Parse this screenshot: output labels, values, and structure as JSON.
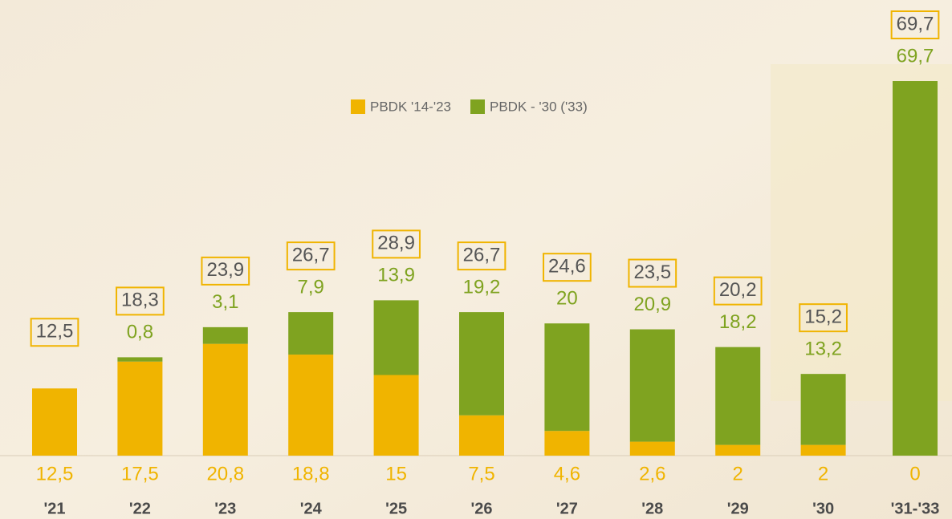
{
  "chart_data": {
    "type": "stacked_bar",
    "categories": [
      "'21",
      "'22",
      "'23",
      "'24",
      "'25",
      "'26",
      "'27",
      "'28",
      "'29",
      "'30",
      "'31-'33"
    ],
    "series": [
      {
        "name": "PBDK '14-'23",
        "color": "#f0b400",
        "values": [
          12.5,
          17.5,
          20.8,
          18.8,
          15,
          7.5,
          4.6,
          2.6,
          2,
          2,
          0
        ],
        "value_labels": [
          "12,5",
          "17,5",
          "20,8",
          "18,8",
          "15",
          "7,5",
          "4,6",
          "2,6",
          "2",
          "2",
          "0"
        ]
      },
      {
        "name": "PBDK - '30 ('33)",
        "color": "#7fa320",
        "values": [
          null,
          0.8,
          3.1,
          7.9,
          13.9,
          19.2,
          20,
          20.9,
          18.2,
          13.2,
          69.7
        ],
        "value_labels": [
          null,
          "0,8",
          "3,1",
          "7,9",
          "13,9",
          "19,2",
          "20",
          "20,9",
          "18,2",
          "13,2",
          "69,7"
        ]
      }
    ],
    "totals": {
      "values": [
        12.5,
        18.3,
        23.9,
        26.7,
        28.9,
        26.7,
        24.6,
        23.5,
        20.2,
        15.2,
        69.7
      ],
      "value_labels": [
        "12,5",
        "18,3",
        "23,9",
        "26,7",
        "28,9",
        "26,7",
        "24,6",
        "23,5",
        "20,2",
        "15,2",
        "69,7"
      ]
    },
    "ylim": [
      0,
      70
    ]
  }
}
